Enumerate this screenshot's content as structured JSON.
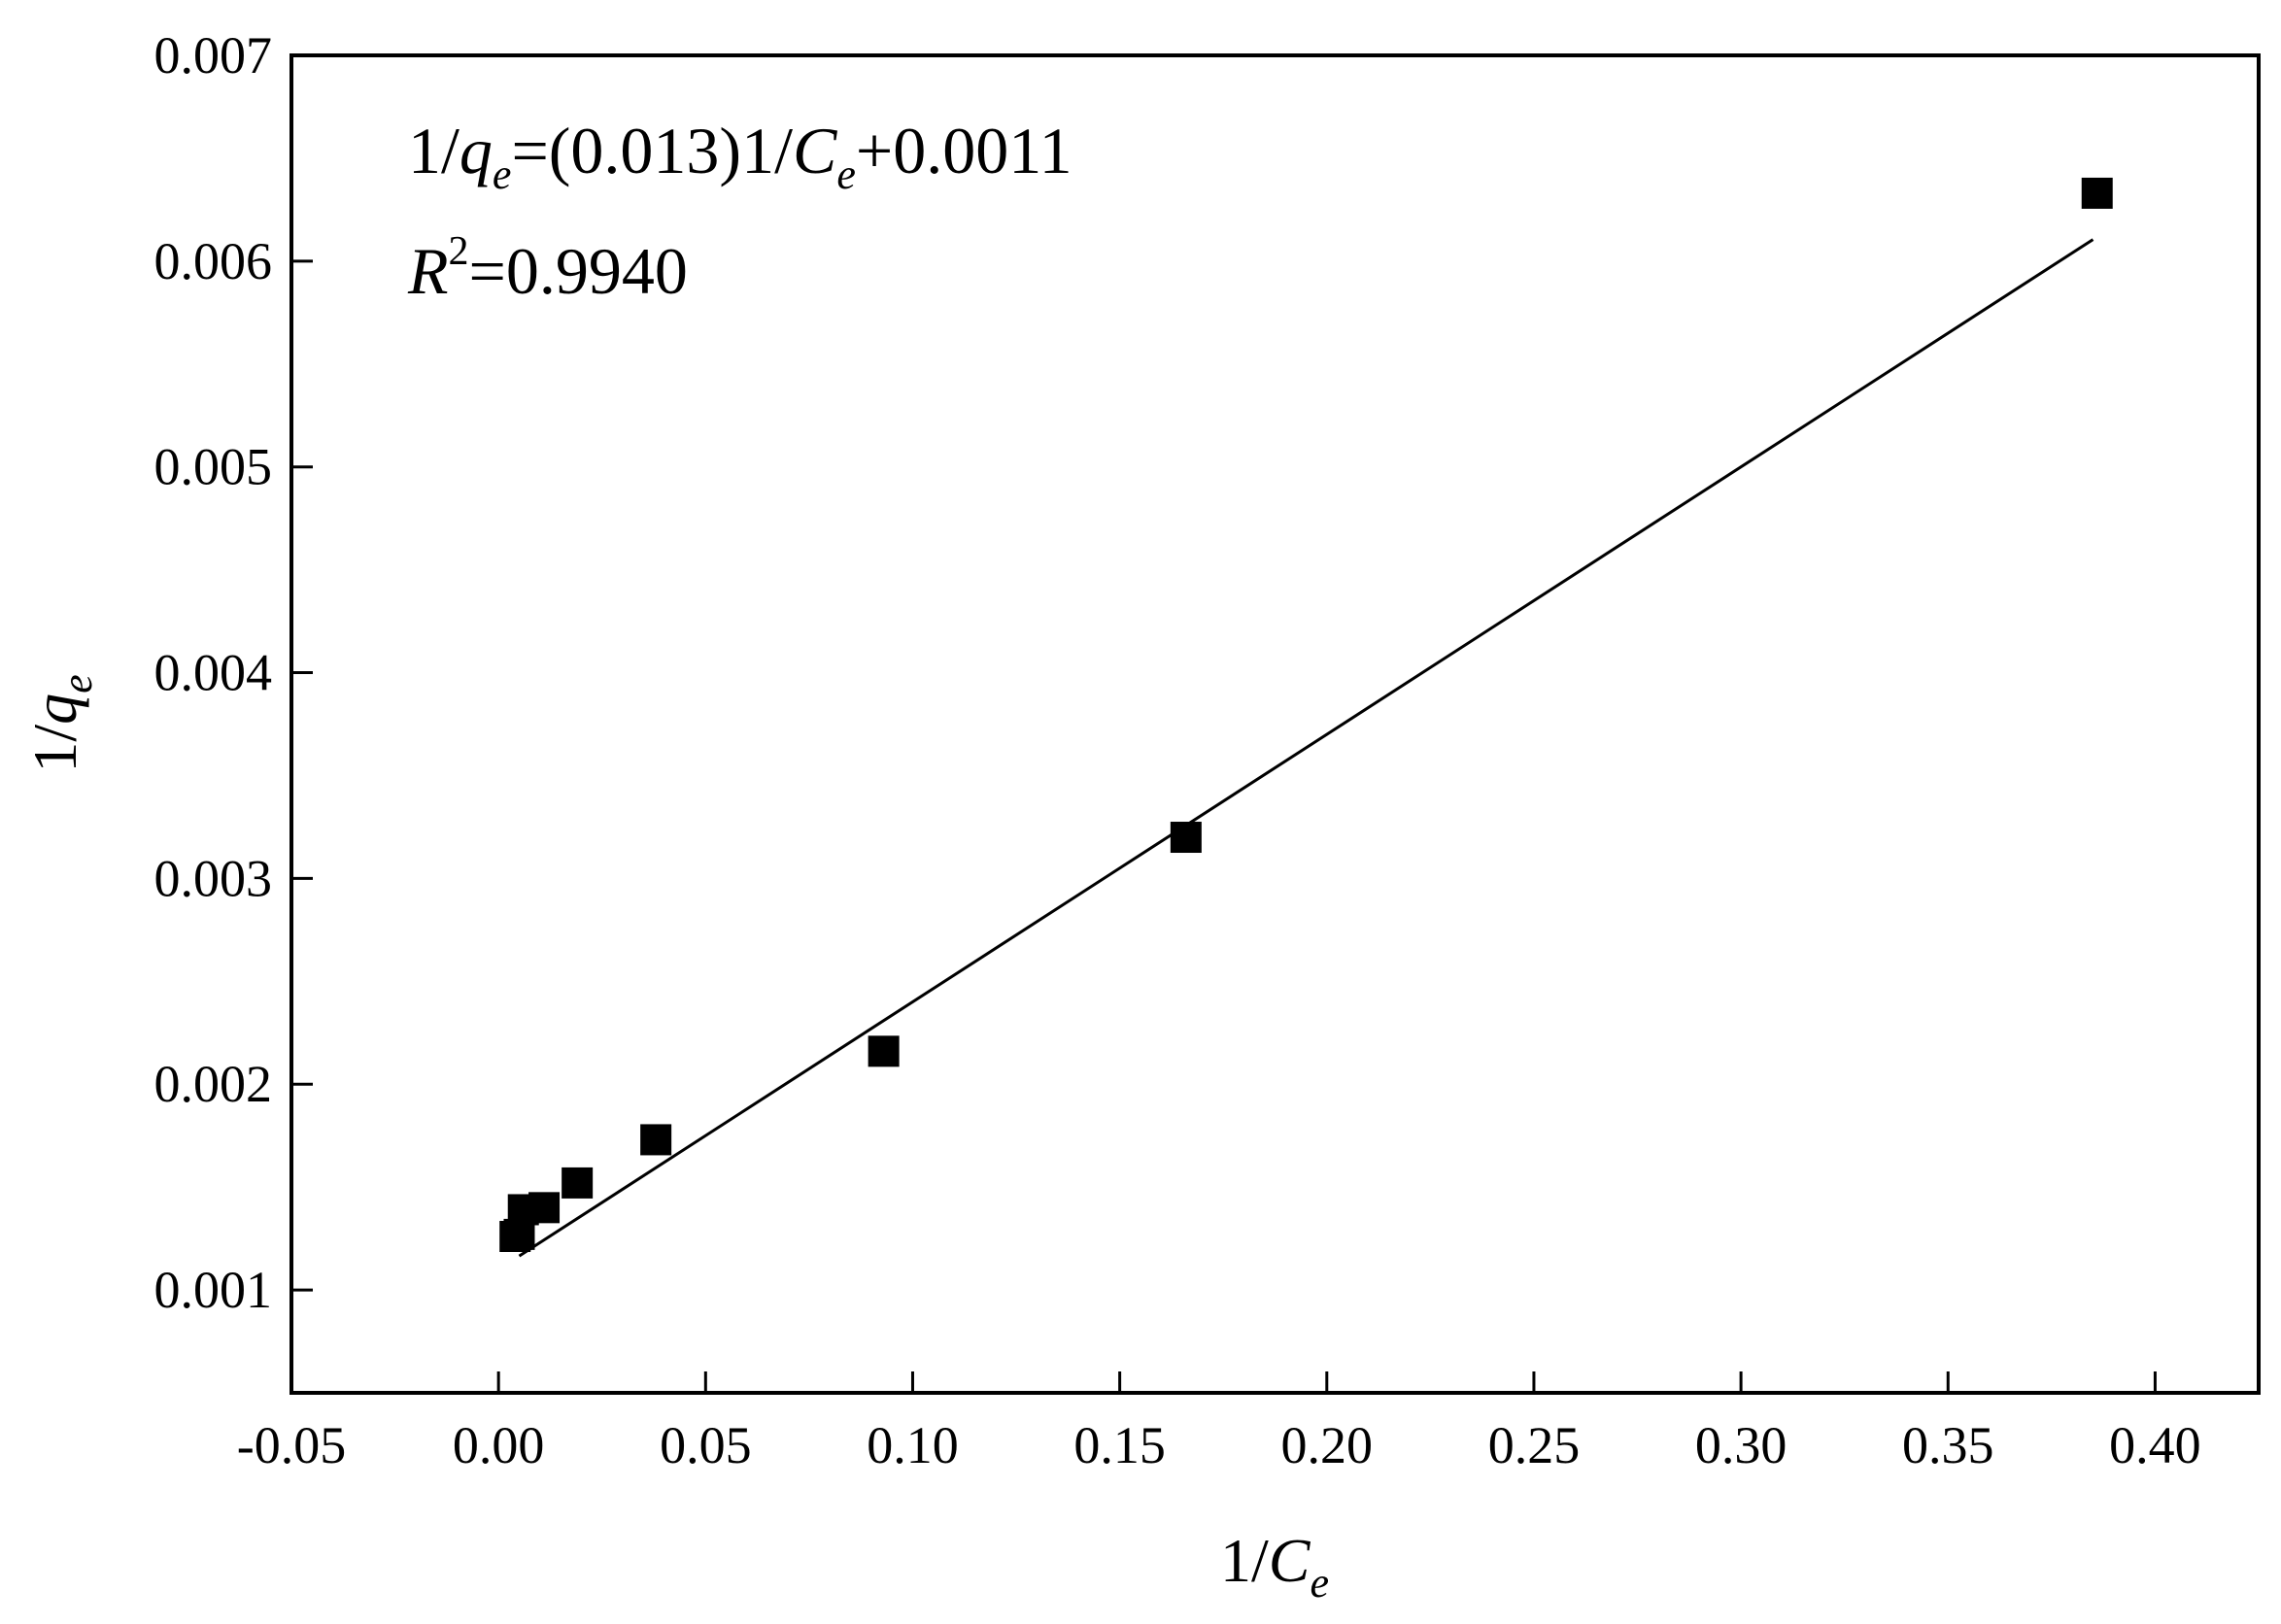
{
  "chart_data": {
    "type": "scatter",
    "title": "",
    "xlabel": {
      "main": "1/",
      "var": "C",
      "sub": "e"
    },
    "ylabel": {
      "main": "1/",
      "var": "q",
      "sub": "e"
    },
    "xlim": [
      -0.05,
      0.425
    ],
    "ylim": [
      0.0005,
      0.007
    ],
    "x_ticks": [
      -0.05,
      0.0,
      0.05,
      0.1,
      0.15,
      0.2,
      0.25,
      0.3,
      0.35,
      0.4
    ],
    "x_tick_labels": [
      "-0.05",
      "0.00",
      "0.05",
      "0.10",
      "0.15",
      "0.20",
      "0.25",
      "0.30",
      "0.35",
      "0.40"
    ],
    "y_ticks": [
      0.001,
      0.002,
      0.003,
      0.004,
      0.005,
      0.006,
      0.007
    ],
    "y_tick_labels": [
      "0.001",
      "0.002",
      "0.003",
      "0.004",
      "0.005",
      "0.006",
      "0.007"
    ],
    "grid": false,
    "legend": "none",
    "series": [
      {
        "marker": "square",
        "color": "#000000",
        "points": [
          {
            "x": 0.004,
            "y": 0.00126
          },
          {
            "x": 0.005,
            "y": 0.00127
          },
          {
            "x": 0.006,
            "y": 0.00139
          },
          {
            "x": 0.011,
            "y": 0.0014
          },
          {
            "x": 0.019,
            "y": 0.00152
          },
          {
            "x": 0.038,
            "y": 0.00173
          },
          {
            "x": 0.093,
            "y": 0.00216
          },
          {
            "x": 0.166,
            "y": 0.0032
          },
          {
            "x": 0.386,
            "y": 0.00633
          }
        ]
      }
    ],
    "fit_line": {
      "slope": 0.013,
      "intercept": 0.0011,
      "x_range": [
        0.005,
        0.385
      ],
      "color": "#000000"
    },
    "annotations": {
      "equation": {
        "p1": "1/",
        "q": "q",
        "e1": "e",
        "p2": "=(0.013)1/",
        "c": "C",
        "e2": "e",
        "p3": "+0.0011"
      },
      "r2": {
        "r": "R",
        "sup": "2",
        "val": "=0.9940"
      }
    }
  }
}
